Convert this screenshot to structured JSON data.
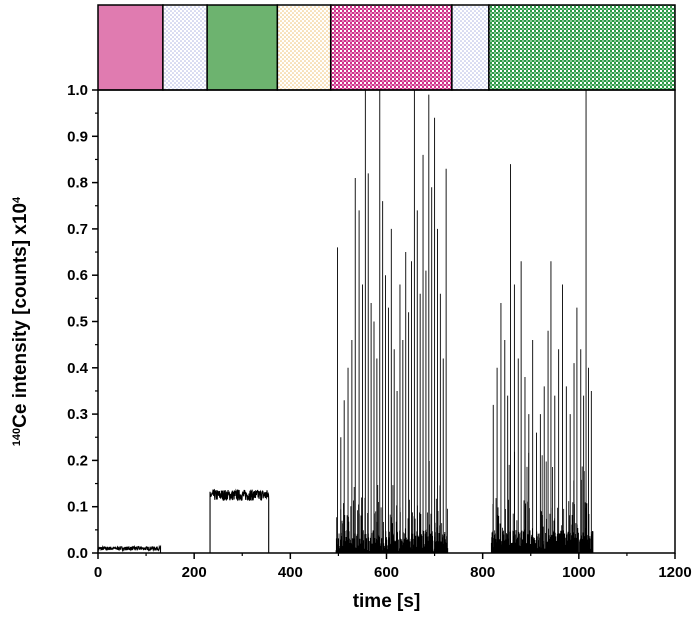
{
  "chart_data": {
    "type": "line",
    "title": "",
    "xlabel": "time [s]",
    "ylabel": {
      "sup": "140",
      "main": "Ce intensity [counts] x10",
      "exp": "4"
    },
    "xlim": [
      0,
      1200
    ],
    "ylim": [
      0,
      1.0
    ],
    "x_ticks": [
      0,
      200,
      400,
      600,
      800,
      1000,
      1200
    ],
    "y_ticks": [
      0.0,
      0.1,
      0.2,
      0.3,
      0.4,
      0.5,
      0.6,
      0.7,
      0.8,
      0.9,
      1.0
    ],
    "grid": false,
    "baseline_segments": [
      {
        "x_start": 0,
        "x_end": 130,
        "level": 0.01,
        "noise": 0.004
      },
      {
        "x_start": 233,
        "x_end": 355,
        "level": 0.125,
        "noise": 0.012
      }
    ],
    "spike_regions": [
      {
        "x_start": 495,
        "x_end": 728
      },
      {
        "x_start": 818,
        "x_end": 1030
      }
    ],
    "spikes": [
      [
        498,
        0.66
      ],
      [
        505,
        0.25
      ],
      [
        512,
        0.33
      ],
      [
        520,
        0.4
      ],
      [
        528,
        0.46
      ],
      [
        535,
        0.81
      ],
      [
        543,
        0.74
      ],
      [
        550,
        0.58
      ],
      [
        556,
        1.0
      ],
      [
        562,
        0.82
      ],
      [
        568,
        0.54
      ],
      [
        574,
        0.5
      ],
      [
        580,
        0.42
      ],
      [
        586,
        1.0
      ],
      [
        592,
        0.76
      ],
      [
        598,
        0.6
      ],
      [
        604,
        0.53
      ],
      [
        610,
        0.7
      ],
      [
        616,
        0.44
      ],
      [
        622,
        0.35
      ],
      [
        628,
        0.58
      ],
      [
        634,
        0.46
      ],
      [
        640,
        0.65
      ],
      [
        646,
        0.52
      ],
      [
        652,
        0.63
      ],
      [
        658,
        1.0
      ],
      [
        664,
        0.74
      ],
      [
        670,
        0.56
      ],
      [
        676,
        0.86
      ],
      [
        682,
        0.61
      ],
      [
        688,
        0.99
      ],
      [
        694,
        0.79
      ],
      [
        700,
        0.94
      ],
      [
        706,
        0.7
      ],
      [
        712,
        0.56
      ],
      [
        718,
        0.42
      ],
      [
        724,
        0.83
      ],
      [
        822,
        0.32
      ],
      [
        830,
        0.4
      ],
      [
        838,
        0.54
      ],
      [
        846,
        0.46
      ],
      [
        852,
        0.34
      ],
      [
        858,
        0.84
      ],
      [
        866,
        0.58
      ],
      [
        874,
        0.42
      ],
      [
        880,
        0.63
      ],
      [
        888,
        0.38
      ],
      [
        896,
        0.3
      ],
      [
        904,
        0.46
      ],
      [
        912,
        0.26
      ],
      [
        920,
        0.3
      ],
      [
        928,
        0.36
      ],
      [
        936,
        0.48
      ],
      [
        942,
        0.63
      ],
      [
        950,
        0.34
      ],
      [
        958,
        0.44
      ],
      [
        966,
        0.58
      ],
      [
        974,
        0.36
      ],
      [
        982,
        0.3
      ],
      [
        990,
        0.41
      ],
      [
        996,
        0.53
      ],
      [
        1004,
        0.44
      ],
      [
        1010,
        0.34
      ],
      [
        1015,
        1.0
      ],
      [
        1020,
        0.4
      ],
      [
        1026,
        0.35
      ]
    ],
    "phase_bands": [
      {
        "x_start": 0,
        "x_end": 135,
        "color": "#e07bb0",
        "pattern": "solid"
      },
      {
        "x_start": 135,
        "x_end": 227,
        "color": "#aeb4e3",
        "pattern": "dots"
      },
      {
        "x_start": 227,
        "x_end": 373,
        "color": "#6db36f",
        "pattern": "solid"
      },
      {
        "x_start": 373,
        "x_end": 484,
        "color": "#f0c070",
        "pattern": "dots"
      },
      {
        "x_start": 484,
        "x_end": 736,
        "color": "#d0308a",
        "pattern": "checker"
      },
      {
        "x_start": 736,
        "x_end": 813,
        "color": "#aeb4e3",
        "pattern": "dots"
      },
      {
        "x_start": 813,
        "x_end": 1200,
        "color": "#2a9a45",
        "pattern": "checker"
      }
    ],
    "line_color": "#000000"
  }
}
